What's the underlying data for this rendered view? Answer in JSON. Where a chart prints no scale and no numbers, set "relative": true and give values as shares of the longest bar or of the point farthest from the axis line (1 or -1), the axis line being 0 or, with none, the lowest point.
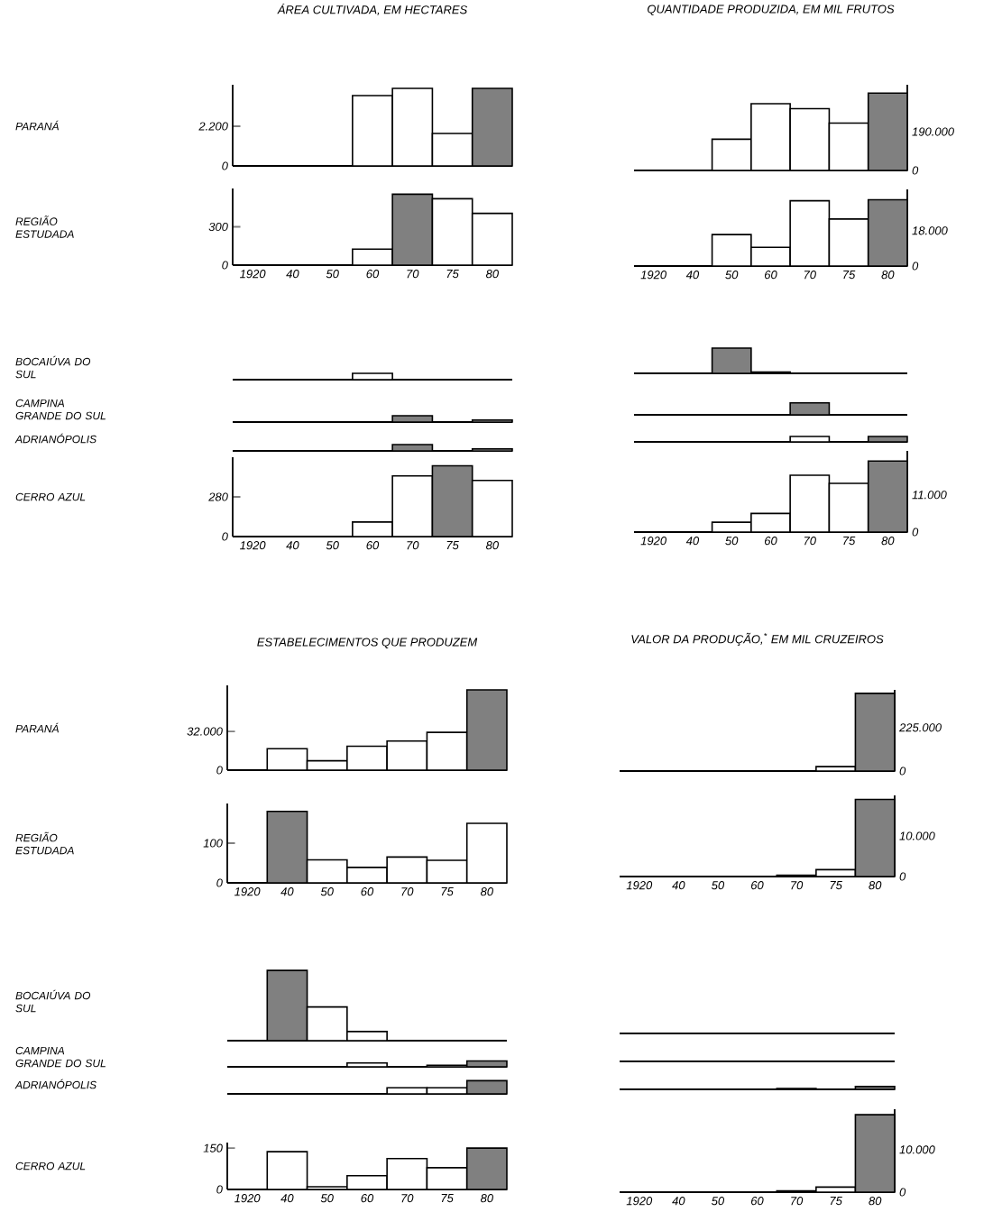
{
  "chart_data": [
    {
      "type": "bar",
      "title": "ÁREA CULTIVADA, EM HECTARES",
      "ylabel": "PARANÁ",
      "categories": [
        "1920",
        "40",
        "50",
        "60",
        "70",
        "75",
        "80"
      ],
      "values": [
        null,
        null,
        null,
        3900,
        4300,
        1800,
        4300
      ],
      "colors": [
        "#ffffff",
        "#ffffff",
        "#ffffff",
        "#ffffff",
        "#ffffff",
        "#ffffff",
        "#808080"
      ],
      "ylim": [
        0,
        4500
      ],
      "yticks": [
        0,
        {
          "value": 2200,
          "label": "2.200"
        }
      ],
      "tick_labels": "y"
    },
    {
      "type": "bar",
      "ylabel": "REGIÃO ESTUDADA",
      "categories": [
        "1920",
        "40",
        "50",
        "60",
        "70",
        "75",
        "80"
      ],
      "values": [
        null,
        null,
        null,
        125,
        555,
        520,
        405
      ],
      "colors": [
        "#ffffff",
        "#ffffff",
        "#ffffff",
        "#ffffff",
        "#808080",
        "#ffffff",
        "#ffffff"
      ],
      "ylim": [
        0,
        600
      ],
      "yticks": [
        0,
        300
      ]
    },
    {
      "type": "bar",
      "ylabel": "BOCAIÚVA DO SUL",
      "relative": true,
      "categories": [
        "1920",
        "40",
        "50",
        "60",
        "70",
        "75",
        "80"
      ],
      "values": [
        null,
        null,
        null,
        1,
        null,
        null,
        null
      ],
      "colors": [
        "#ffffff",
        "#ffffff",
        "#ffffff",
        "#ffffff",
        "#ffffff",
        "#ffffff",
        "#ffffff"
      ],
      "tick_labels": false
    },
    {
      "type": "bar",
      "ylabel": "CAMPINA GRANDE DO SUL",
      "relative": true,
      "categories": [
        "1920",
        "40",
        "50",
        "60",
        "70",
        "75",
        "80"
      ],
      "values": [
        null,
        null,
        null,
        null,
        1,
        null,
        0.3
      ],
      "colors": [
        "#ffffff",
        "#ffffff",
        "#ffffff",
        "#ffffff",
        "#808080",
        "#ffffff",
        "#ffffff"
      ],
      "tick_labels": false
    },
    {
      "type": "bar",
      "ylabel": "ADRIANÓPOLIS",
      "relative": true,
      "categories": [
        "1920",
        "40",
        "50",
        "60",
        "70",
        "75",
        "80"
      ],
      "values": [
        null,
        null,
        null,
        null,
        1,
        null,
        0.3
      ],
      "colors": [
        "#ffffff",
        "#ffffff",
        "#ffffff",
        "#ffffff",
        "#808080",
        "#ffffff",
        "#ffffff"
      ],
      "tick_labels": false
    },
    {
      "type": "bar",
      "ylabel": "CERRO AZUL",
      "categories": [
        "1920",
        "40",
        "50",
        "60",
        "70",
        "75",
        "80"
      ],
      "values": [
        null,
        null,
        null,
        103,
        428,
        500,
        396
      ],
      "colors": [
        "#ffffff",
        "#ffffff",
        "#ffffff",
        "#ffffff",
        "#ffffff",
        "#808080",
        "#ffffff"
      ],
      "ylim": [
        0,
        560
      ],
      "yticks": [
        0,
        280
      ]
    },
    {
      "type": "bar",
      "title": "QUANTIDADE PRODUZIDA, EM MIL FRUTOS",
      "categories": [
        "1920",
        "40",
        "50",
        "60",
        "70",
        "75",
        "80"
      ],
      "values": [
        null,
        null,
        153000,
        327000,
        303000,
        232000,
        379000
      ],
      "colors": [
        "#ffffff",
        "#ffffff",
        "#ffffff",
        "#ffffff",
        "#ffffff",
        "#ffffff",
        "#808080"
      ],
      "ylim": [
        0,
        420000
      ],
      "yticks": [
        0,
        {
          "value": 190000,
          "label": "190.000"
        }
      ],
      "tick_labels": "y"
    },
    {
      "type": "bar",
      "categories": [
        "1920",
        "40",
        "50",
        "60",
        "70",
        "75",
        "80"
      ],
      "values": [
        null,
        null,
        16000,
        9500,
        33200,
        23900,
        33700
      ],
      "colors": [
        "#ffffff",
        "#ffffff",
        "#ffffff",
        "#ffffff",
        "#ffffff",
        "#ffffff",
        "#808080"
      ],
      "ylim": [
        0,
        39000
      ],
      "yticks": [
        0,
        {
          "value": 18000,
          "label": "18.000"
        }
      ]
    },
    {
      "type": "bar",
      "relative": true,
      "categories": [
        "1920",
        "40",
        "50",
        "60",
        "70",
        "75",
        "80"
      ],
      "values": [
        null,
        null,
        1,
        0.05,
        null,
        null,
        null
      ],
      "colors": [
        "#ffffff",
        "#ffffff",
        "#808080",
        "#ffffff",
        "#ffffff",
        "#ffffff",
        "#ffffff"
      ],
      "tick_labels": false
    },
    {
      "type": "bar",
      "relative": true,
      "categories": [
        "1920",
        "40",
        "50",
        "60",
        "70",
        "75",
        "80"
      ],
      "values": [
        null,
        null,
        null,
        null,
        1,
        null,
        null
      ],
      "colors": [
        "#ffffff",
        "#ffffff",
        "#ffffff",
        "#ffffff",
        "#808080",
        "#ffffff",
        "#ffffff"
      ],
      "tick_labels": false
    },
    {
      "type": "bar",
      "relative": true,
      "categories": [
        "1920",
        "40",
        "50",
        "60",
        "70",
        "75",
        "80"
      ],
      "values": [
        null,
        null,
        null,
        null,
        1,
        null,
        1
      ],
      "colors": [
        "#ffffff",
        "#ffffff",
        "#ffffff",
        "#ffffff",
        "#ffffff",
        "#ffffff",
        "#808080"
      ],
      "tick_labels": false
    },
    {
      "type": "bar",
      "categories": [
        "1920",
        "40",
        "50",
        "60",
        "70",
        "75",
        "80"
      ],
      "values": [
        null,
        null,
        2900,
        5500,
        16800,
        14400,
        21000
      ],
      "colors": [
        "#ffffff",
        "#ffffff",
        "#ffffff",
        "#ffffff",
        "#ffffff",
        "#ffffff",
        "#808080"
      ],
      "ylim": [
        0,
        24000
      ],
      "yticks": [
        0,
        {
          "value": 11000,
          "label": "11.000"
        }
      ]
    },
    {
      "type": "bar",
      "title": "ESTABELECIMENTOS QUE PRODUZEM",
      "ylabel": "PARANÁ",
      "categories": [
        "1920",
        "40",
        "50",
        "60",
        "70",
        "75",
        "80"
      ],
      "values": [
        null,
        17700,
        7700,
        19700,
        24000,
        31200,
        66300
      ],
      "colors": [
        "#ffffff",
        "#ffffff",
        "#ffffff",
        "#ffffff",
        "#ffffff",
        "#ffffff",
        "#808080"
      ],
      "ylim": [
        0,
        70000
      ],
      "yticks": [
        0,
        {
          "value": 32000,
          "label": "32.000"
        }
      ],
      "tick_labels": "y"
    },
    {
      "type": "bar",
      "ylabel": "REGIÃO ESTUDADA",
      "categories": [
        "1920",
        "40",
        "50",
        "60",
        "70",
        "75",
        "80"
      ],
      "values": [
        null,
        180,
        58,
        39,
        65,
        57,
        150
      ],
      "colors": [
        "#ffffff",
        "#808080",
        "#ffffff",
        "#ffffff",
        "#ffffff",
        "#ffffff",
        "#ffffff"
      ],
      "ylim": [
        0,
        200
      ],
      "yticks": [
        0,
        100
      ]
    },
    {
      "type": "bar",
      "ylabel": "BOCAIÚVA DO SUL",
      "relative": true,
      "categories": [
        "1920",
        "40",
        "50",
        "60",
        "70",
        "75",
        "80"
      ],
      "values": [
        null,
        1,
        0.48,
        0.13,
        null,
        null,
        null
      ],
      "colors": [
        "#ffffff",
        "#808080",
        "#ffffff",
        "#ffffff",
        "#ffffff",
        "#ffffff",
        "#ffffff"
      ],
      "tick_labels": false
    },
    {
      "type": "bar",
      "ylabel": "CAMPINA GRANDE DO SUL",
      "relative": true,
      "categories": [
        "1920",
        "40",
        "50",
        "60",
        "70",
        "75",
        "80"
      ],
      "values": [
        null,
        null,
        null,
        0.67,
        null,
        0.27,
        1
      ],
      "colors": [
        "#ffffff",
        "#ffffff",
        "#ffffff",
        "#ffffff",
        "#ffffff",
        "#ffffff",
        "#808080"
      ],
      "tick_labels": false
    },
    {
      "type": "bar",
      "ylabel": "ADRIANÓPOLIS",
      "relative": true,
      "categories": [
        "1920",
        "40",
        "50",
        "60",
        "70",
        "75",
        "80"
      ],
      "values": [
        null,
        null,
        null,
        null,
        0.46,
        0.46,
        1
      ],
      "colors": [
        "#ffffff",
        "#ffffff",
        "#ffffff",
        "#ffffff",
        "#ffffff",
        "#ffffff",
        "#808080"
      ],
      "tick_labels": false
    },
    {
      "type": "bar",
      "ylabel": "CERRO AZUL",
      "categories": [
        "1920",
        "40",
        "50",
        "60",
        "70",
        "75",
        "80"
      ],
      "values": [
        null,
        137,
        10,
        50,
        112,
        79,
        150
      ],
      "colors": [
        "#ffffff",
        "#ffffff",
        "#ffffff",
        "#ffffff",
        "#ffffff",
        "#ffffff",
        "#808080"
      ],
      "ylim": [
        0,
        170
      ],
      "yticks": [
        0,
        150
      ]
    },
    {
      "type": "bar",
      "title": "VALOR DA PRODUÇÃO,$^{*}$ EM MIL CRUZEIROS",
      "categories": [
        "1920",
        "40",
        "50",
        "60",
        "70",
        "75",
        "80"
      ],
      "values": [
        null,
        null,
        null,
        null,
        null,
        23000,
        402000
      ],
      "colors": [
        "#ffffff",
        "#ffffff",
        "#ffffff",
        "#ffffff",
        "#ffffff",
        "#ffffff",
        "#808080"
      ],
      "ylim": [
        0,
        420000
      ],
      "yticks": [
        0,
        {
          "value": 225000,
          "label": "225.000"
        }
      ],
      "tick_labels": "y"
    },
    {
      "type": "bar",
      "categories": [
        "1920",
        "40",
        "50",
        "60",
        "70",
        "75",
        "80"
      ],
      "values": [
        null,
        null,
        null,
        null,
        300,
        1700,
        19000
      ],
      "colors": [
        "#ffffff",
        "#ffffff",
        "#ffffff",
        "#ffffff",
        "#ffffff",
        "#ffffff",
        "#808080"
      ],
      "ylim": [
        0,
        20000
      ],
      "yticks": [
        0,
        {
          "value": 10000,
          "label": "10.000"
        }
      ]
    },
    {
      "type": "other"
    },
    {
      "type": "other"
    },
    {
      "type": "bar",
      "relative": true,
      "categories": [
        "1920",
        "40",
        "50",
        "60",
        "70",
        "75",
        "80"
      ],
      "values": [
        null,
        null,
        null,
        null,
        0.3,
        null,
        1
      ],
      "colors": [
        "#ffffff",
        "#ffffff",
        "#ffffff",
        "#ffffff",
        "#ffffff",
        "#ffffff",
        "#808080"
      ],
      "tick_labels": false
    },
    {
      "type": "bar",
      "categories": [
        "1920",
        "40",
        "50",
        "60",
        "70",
        "75",
        "80"
      ],
      "values": [
        null,
        null,
        null,
        null,
        300,
        1200,
        18200
      ],
      "colors": [
        "#ffffff",
        "#ffffff",
        "#ffffff",
        "#ffffff",
        "#ffffff",
        "#ffffff",
        "#808080"
      ],
      "ylim": [
        0,
        19500
      ],
      "yticks": [
        0,
        {
          "value": 10000,
          "label": "10.000"
        }
      ]
    }
  ]
}
